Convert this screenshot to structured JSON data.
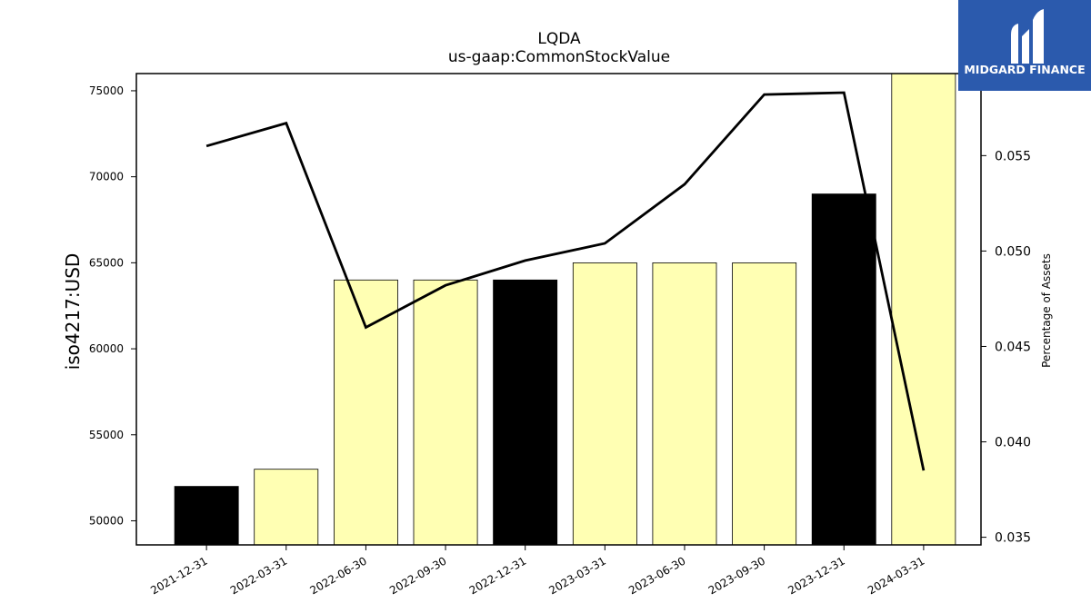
{
  "logo": {
    "text": "MIDGARD FINANCE",
    "bg_color": "#2b5aad"
  },
  "chart_data": {
    "type": "bar",
    "title": "LQDA",
    "subtitle": "us-gaap:CommonStockValue",
    "ylabel": "iso4217:USD",
    "y2label": "Percentage of Assets",
    "categories": [
      "2021-12-31",
      "2022-03-31",
      "2022-06-30",
      "2022-09-30",
      "2022-12-31",
      "2023-03-31",
      "2023-06-30",
      "2023-09-30",
      "2023-12-31",
      "2024-03-31"
    ],
    "series": [
      {
        "type": "bar",
        "axis": "left",
        "values": [
          52000,
          53000,
          64000,
          64000,
          64000,
          65000,
          65000,
          65000,
          69000,
          76000
        ],
        "colors": [
          "#000000",
          "#ffffb3",
          "#ffffb3",
          "#ffffb3",
          "#000000",
          "#ffffb3",
          "#ffffb3",
          "#ffffb3",
          "#000000",
          "#ffffb3"
        ]
      },
      {
        "type": "line",
        "axis": "right",
        "color": "#000000",
        "values": [
          0.0555,
          0.0567,
          0.046,
          0.0482,
          0.0495,
          0.0504,
          0.0535,
          0.0582,
          0.0583,
          0.0385
        ]
      }
    ],
    "ylim": [
      48600,
      76000
    ],
    "y2lim": [
      0.0346,
      0.0593
    ],
    "yticks": [
      50000,
      55000,
      60000,
      65000,
      70000,
      75000
    ],
    "y2ticks": [
      0.035,
      0.04,
      0.045,
      0.05,
      0.055
    ],
    "ytick_labels": [
      "50000",
      "55000",
      "60000",
      "65000",
      "70000",
      "75000"
    ],
    "y2tick_labels": [
      "0.035",
      "0.040",
      "0.045",
      "0.050",
      "0.055"
    ],
    "grid": false,
    "legend": "none"
  }
}
